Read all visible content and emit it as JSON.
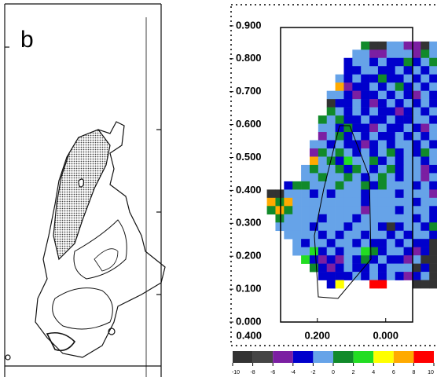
{
  "left_panel": {
    "label": "b"
  },
  "chart_data": {
    "type": "heatmap",
    "xlim": [
      0.45,
      -0.15
    ],
    "ylim": [
      0,
      0.9
    ],
    "xticks": [
      {
        "value": 0.4,
        "label": "0.400"
      },
      {
        "value": 0.2,
        "label": "0.200"
      },
      {
        "value": 0,
        "label": "0.000"
      }
    ],
    "yticks": [
      {
        "value": 0,
        "label": "0.000"
      },
      {
        "value": 0.1,
        "label": "0.100"
      },
      {
        "value": 0.2,
        "label": "0.200"
      },
      {
        "value": 0.3,
        "label": "0.300"
      },
      {
        "value": 0.4,
        "label": "0.400"
      },
      {
        "value": 0.5,
        "label": "0.500"
      },
      {
        "value": 0.6,
        "label": "0.600"
      },
      {
        "value": 0.7,
        "label": "0.700"
      },
      {
        "value": 0.8,
        "label": "0.800"
      },
      {
        "value": 0.9,
        "label": "0.900"
      }
    ],
    "x": [
      0.335,
      0.31,
      0.285,
      0.26,
      0.235,
      0.21,
      0.185,
      0.16,
      0.135,
      0.11,
      0.085,
      0.06,
      0.035,
      0.01,
      -0.015,
      -0.04,
      -0.065,
      -0.09,
      -0.115,
      -0.14
    ],
    "y": [
      0.84,
      0.815,
      0.79,
      0.765,
      0.74,
      0.715,
      0.69,
      0.665,
      0.64,
      0.615,
      0.59,
      0.565,
      0.54,
      0.515,
      0.49,
      0.465,
      0.44,
      0.415,
      0.39,
      0.365,
      0.34,
      0.315,
      0.29,
      0.265,
      0.24,
      0.215,
      0.19,
      0.165,
      0.14,
      0.115
    ],
    "z": [
      [
        null,
        null,
        null,
        null,
        null,
        null,
        null,
        null,
        null,
        null,
        null,
        1,
        -9,
        -9,
        -1,
        -1,
        -5,
        -5,
        -9,
        -1
      ],
      [
        null,
        null,
        null,
        null,
        null,
        null,
        null,
        null,
        null,
        null,
        -1,
        -1,
        -5,
        -5,
        -1,
        -1,
        -1,
        -5,
        1,
        -1
      ],
      [
        null,
        null,
        null,
        null,
        null,
        null,
        null,
        null,
        null,
        -3,
        -1,
        -1,
        -3,
        -1,
        -3,
        -3,
        1,
        -3,
        -1,
        1
      ],
      [
        null,
        null,
        null,
        null,
        null,
        null,
        null,
        null,
        null,
        -3,
        -3,
        -1,
        -1,
        -3,
        -3,
        -1,
        -3,
        -1,
        -3,
        -1
      ],
      [
        null,
        null,
        null,
        null,
        null,
        null,
        null,
        null,
        -1,
        -3,
        -1,
        -3,
        -3,
        1,
        -3,
        -3,
        -1,
        -3,
        -1,
        -3
      ],
      [
        null,
        null,
        null,
        null,
        null,
        null,
        null,
        null,
        7,
        -5,
        -3,
        -3,
        -1,
        -3,
        -1,
        1,
        -3,
        -1,
        -3,
        -1
      ],
      [
        null,
        null,
        null,
        null,
        null,
        null,
        null,
        -1,
        -1,
        -3,
        -5,
        -3,
        -3,
        -1,
        -3,
        -1,
        -3,
        -5,
        -1,
        -3
      ],
      [
        null,
        null,
        null,
        null,
        null,
        null,
        null,
        -9,
        -3,
        -3,
        -1,
        -3,
        -5,
        -3,
        -1,
        -3,
        -1,
        -3,
        -1,
        -3
      ],
      [
        null,
        null,
        null,
        null,
        null,
        null,
        null,
        1,
        -1,
        -3,
        -1,
        -3,
        -1,
        -3,
        -3,
        -5,
        -3,
        -1,
        -3,
        -1
      ],
      [
        null,
        null,
        null,
        null,
        null,
        null,
        1,
        -1,
        1,
        -3,
        -3,
        -1,
        -3,
        -3,
        -1,
        -3,
        -3,
        -1,
        -1,
        -3
      ],
      [
        null,
        null,
        null,
        null,
        null,
        null,
        -1,
        -1,
        -3,
        1,
        -3,
        -3,
        -5,
        -1,
        -3,
        -3,
        -1,
        -3,
        -5,
        -1
      ],
      [
        null,
        null,
        null,
        null,
        null,
        null,
        -5,
        -1,
        1,
        -3,
        -1,
        -3,
        -1,
        -3,
        -3,
        -1,
        -3,
        -1,
        -3,
        -1
      ],
      [
        null,
        null,
        null,
        null,
        null,
        -1,
        -1,
        -3,
        -1,
        -3,
        -3,
        -5,
        -3,
        -1,
        -3,
        -1,
        -1,
        -3,
        -1,
        -3
      ],
      [
        null,
        null,
        null,
        null,
        null,
        -5,
        1,
        -1,
        1,
        -1,
        -3,
        -1,
        -3,
        -1,
        1,
        -3,
        -1,
        -3,
        1,
        -1
      ],
      [
        null,
        null,
        null,
        null,
        null,
        7,
        -1,
        1,
        -3,
        3,
        -1,
        -1,
        1,
        -3,
        -1,
        -3,
        -1,
        -1,
        -3,
        -1
      ],
      [
        null,
        null,
        null,
        null,
        -1,
        1,
        -1,
        -1,
        1,
        -3,
        1,
        -1,
        -3,
        -1,
        1,
        -3,
        -1,
        -1,
        -5,
        -3
      ],
      [
        null,
        null,
        null,
        null,
        -1,
        -1,
        1,
        -1,
        -1,
        1,
        -1,
        -3,
        -1,
        1,
        -1,
        -3,
        -1,
        -1,
        -5,
        -1
      ],
      [
        null,
        null,
        -3,
        1,
        1,
        -1,
        -1,
        -1,
        1,
        -1,
        -1,
        1,
        -3,
        1,
        -1,
        -1,
        -1,
        -3,
        -1,
        -3
      ],
      [
        -9,
        -9,
        -1,
        -1,
        -1,
        -3,
        -1,
        -3,
        -1,
        -1,
        -1,
        -3,
        -1,
        -1,
        -1,
        -3,
        -1,
        -1,
        -1,
        -5
      ],
      [
        7,
        1,
        7,
        -1,
        -1,
        -1,
        -1,
        -1,
        -1,
        -1,
        -1,
        -3,
        -1,
        -1,
        -1,
        -1,
        -1,
        -3,
        -1,
        -1
      ],
      [
        1,
        7,
        1,
        -1,
        -1,
        -1,
        -1,
        -1,
        -1,
        -1,
        -1,
        -5,
        -1,
        -1,
        -1,
        -3,
        -1,
        -1,
        -1,
        -3
      ],
      [
        null,
        1,
        -1,
        -1,
        -1,
        -1,
        -3,
        -1,
        -1,
        -1,
        -3,
        -1,
        -1,
        -1,
        -1,
        -1,
        -1,
        -3,
        -1,
        -3
      ],
      [
        null,
        -1,
        -1,
        -1,
        -1,
        -3,
        -1,
        -1,
        -1,
        -3,
        -1,
        -1,
        -1,
        -3,
        -9,
        -3,
        -1,
        -1,
        -3,
        1
      ],
      [
        null,
        null,
        -1,
        -1,
        -1,
        -1,
        -3,
        -1,
        -3,
        -1,
        -1,
        -3,
        -1,
        -1,
        -3,
        -1,
        -3,
        -1,
        -1,
        -3
      ],
      [
        null,
        null,
        null,
        -1,
        -3,
        -1,
        -1,
        -3,
        -1,
        -1,
        -3,
        -1,
        -3,
        -3,
        -1,
        -3,
        -1,
        -3,
        -3,
        -9
      ],
      [
        null,
        null,
        null,
        -1,
        -1,
        3,
        -3,
        -1,
        -3,
        -1,
        -1,
        3,
        1,
        -3,
        -1,
        -1,
        -3,
        -5,
        -3,
        -9
      ],
      [
        null,
        null,
        null,
        null,
        3,
        -3,
        -5,
        -3,
        -5,
        -1,
        -3,
        1,
        -3,
        -1,
        -3,
        -3,
        -5,
        -1,
        -9,
        -9
      ],
      [
        null,
        null,
        null,
        null,
        null,
        1,
        -3,
        -5,
        -3,
        -1,
        -3,
        -3,
        -1,
        -3,
        -1,
        -1,
        -1,
        -9,
        -3,
        -9
      ],
      [
        null,
        null,
        null,
        null,
        null,
        null,
        -3,
        -3,
        -3,
        -3,
        -1,
        -3,
        -1,
        -3,
        -1,
        -3,
        -5,
        -3,
        -1,
        -9
      ],
      [
        null,
        null,
        null,
        null,
        null,
        null,
        null,
        -3,
        5,
        null,
        null,
        null,
        9,
        9,
        null,
        null,
        null,
        -9,
        -9,
        -9
      ]
    ],
    "colorbar": {
      "ticks": [
        -10,
        -8,
        -6,
        -4,
        -2,
        0,
        2,
        4,
        6,
        8,
        10
      ],
      "colors": [
        "#333333",
        "#454545",
        "#7b1fa2",
        "#0000cc",
        "#66a3e8",
        "#118a2a",
        "#22dd22",
        "#ffff00",
        "#ffaa00",
        "#ff0000"
      ]
    }
  }
}
